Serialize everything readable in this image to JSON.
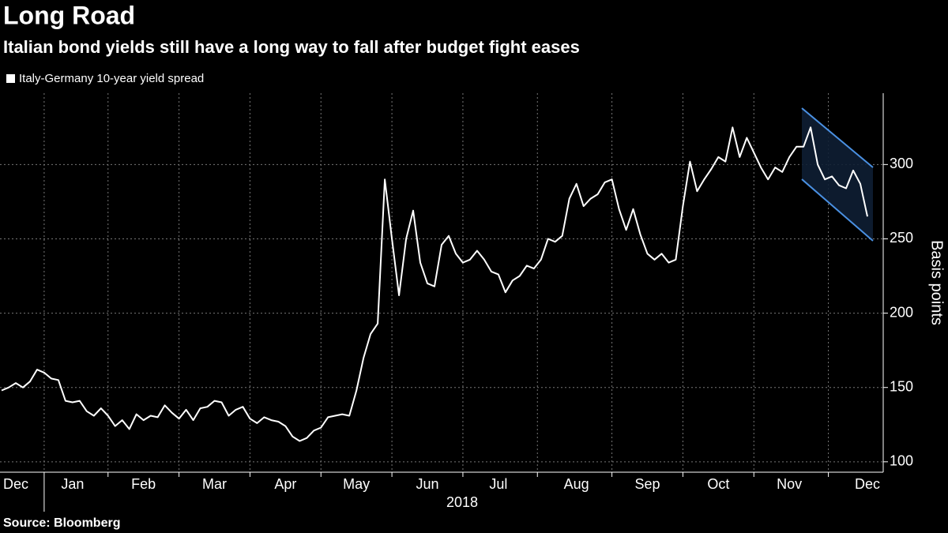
{
  "chart_data": {
    "type": "line",
    "title": "Long Road",
    "subtitle": "Italian bond yields still have a long way to fall after budget fight eases",
    "ylabel": "Basis points",
    "xlabel": "2018",
    "source": "Source: Bloomberg",
    "categories": [
      null,
      null,
      "Dec",
      null,
      null,
      null,
      null,
      null,
      null,
      null,
      "Jan",
      null,
      null,
      null,
      null,
      null,
      null,
      null,
      null,
      null,
      "Feb",
      null,
      null,
      null,
      null,
      null,
      null,
      null,
      null,
      null,
      "Mar",
      null,
      null,
      null,
      null,
      null,
      null,
      null,
      null,
      null,
      "Apr",
      null,
      null,
      null,
      null,
      null,
      null,
      null,
      null,
      null,
      "May",
      null,
      null,
      null,
      null,
      null,
      null,
      null,
      null,
      null,
      "Jun",
      null,
      null,
      null,
      null,
      null,
      null,
      null,
      null,
      null,
      "Jul",
      null,
      null,
      null,
      null,
      null,
      null,
      null,
      null,
      null,
      null,
      "Aug",
      null,
      null,
      null,
      null,
      null,
      null,
      null,
      null,
      null,
      "Sep",
      null,
      null,
      null,
      null,
      null,
      null,
      null,
      null,
      null,
      "Oct",
      null,
      null,
      null,
      null,
      null,
      null,
      null,
      null,
      null,
      "Nov",
      null,
      null,
      null,
      null,
      null,
      null,
      null,
      null,
      null,
      null,
      "Dec"
    ],
    "series": [
      {
        "name": "Italy-Germany 10-year yield spread",
        "color": "#ffffff",
        "values": [
          148,
          150,
          153,
          150,
          154,
          162,
          160,
          156,
          155,
          141,
          140,
          141,
          134,
          131,
          136,
          131,
          124,
          128,
          122,
          132,
          128,
          131,
          130,
          138,
          133,
          129,
          135,
          128,
          136,
          137,
          141,
          140,
          131,
          135,
          137,
          129,
          126,
          130,
          128,
          127,
          124,
          117,
          114,
          116,
          121,
          123,
          130,
          131,
          132,
          131,
          148,
          170,
          186,
          193,
          290,
          250,
          212,
          250,
          269,
          234,
          220,
          218,
          246,
          252,
          240,
          234,
          236,
          242,
          236,
          228,
          226,
          214,
          222,
          225,
          232,
          230,
          236,
          250,
          248,
          252,
          277,
          287,
          272,
          277,
          280,
          288,
          290,
          270,
          256,
          270,
          253,
          240,
          236,
          240,
          234,
          236,
          272,
          302,
          282,
          290,
          297,
          305,
          302,
          325,
          305,
          318,
          308,
          298,
          290,
          298,
          295,
          305,
          312,
          312,
          325,
          300,
          290,
          292,
          286,
          284,
          296,
          287,
          265
        ]
      }
    ],
    "ylim": [
      93,
      348
    ],
    "yticks": [
      100,
      150,
      200,
      250,
      300
    ],
    "grid": true,
    "legend": "top-left"
  }
}
